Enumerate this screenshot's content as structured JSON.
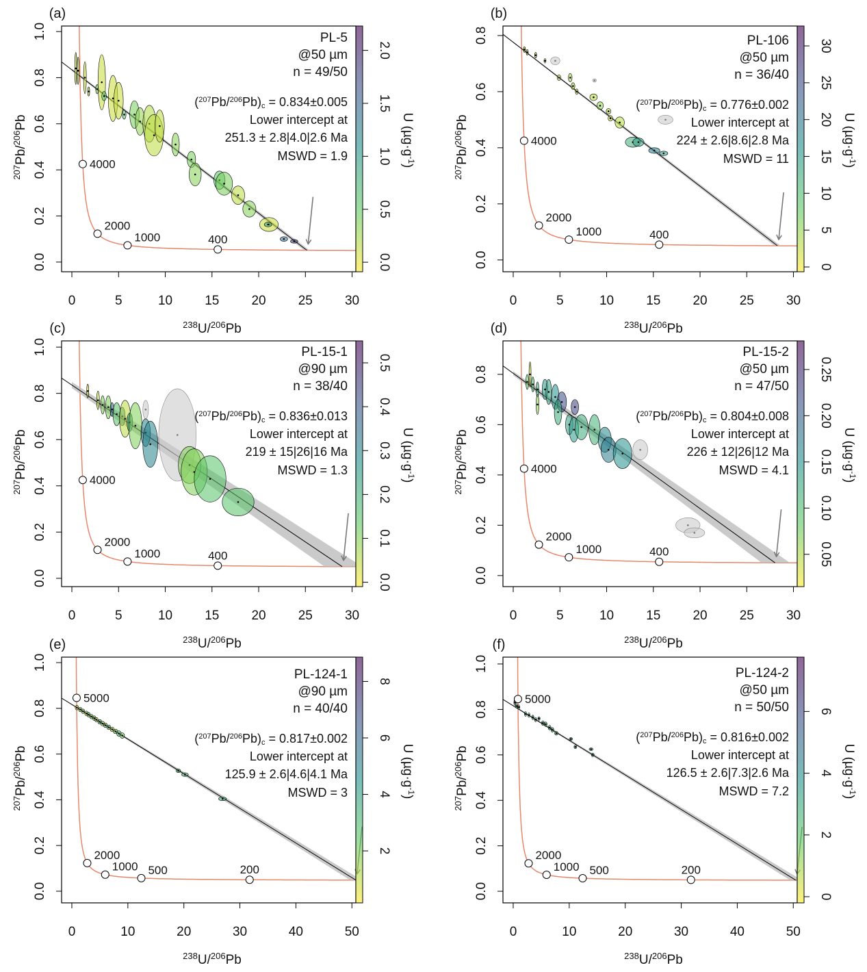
{
  "labels": {
    "x_axis": [
      "238",
      "U/",
      "206",
      "Pb"
    ],
    "y_axis": [
      "207",
      "Pb/",
      "206",
      "Pb"
    ],
    "colorbar": [
      "U (µg·g",
      "-1",
      ")"
    ],
    "pbc_format": [
      "(",
      "207",
      "Pb/",
      "206",
      "Pb)",
      "c",
      " = "
    ],
    "lower_intercept": "Lower intercept at"
  },
  "colors": {
    "concordia": "#E8866B",
    "discordia": "#000000",
    "envelope": "#BDBDBD",
    "rejected": "#CCCCCC",
    "arrow": "#777777",
    "colormap": "viridis (reversed: low = yellow, high = purple)"
  },
  "chart_data": [
    {
      "type": "scatter",
      "panel_label": "(a)",
      "sample": "PL-5",
      "spot": "@50 µm",
      "n": "n = 49/50",
      "pbc": 0.834,
      "pbc_text": "0.834±0.005",
      "pbc_err": 0.005,
      "age_ma": 251.3,
      "age_err": 2.8,
      "age_text": "251.3 ± 2.8|4.0|2.6 Ma",
      "mswd": "MSWD = 1.9",
      "xlim": [
        -1.1,
        30.4
      ],
      "ylim": [
        -0.042,
        1.024
      ],
      "x_ticks": [
        "0",
        "5",
        "10",
        "15",
        "20",
        "25",
        "30"
      ],
      "y_ticks": [
        "0.0",
        "0.2",
        "0.4",
        "0.6",
        "0.8",
        "1.0"
      ],
      "colorbar": {
        "range": [
          -0.09,
          2.23
        ],
        "ticks": [
          "0.0",
          "0.5",
          "1.0",
          "1.5",
          "2.0"
        ]
      },
      "concordia_ages": [
        4000,
        2000,
        1000,
        400
      ],
      "points": [
        [
          0.42,
          0.84,
          0.1,
          0.07,
          0.1
        ],
        [
          0.67,
          0.83,
          0.08,
          0.06,
          0.1
        ],
        [
          1.4,
          0.8,
          0.15,
          0.07,
          0.1
        ],
        [
          1.8,
          0.74,
          0.1,
          0.02,
          0.2
        ],
        [
          3.2,
          0.78,
          0.4,
          0.12,
          0.1
        ],
        [
          2.7,
          0.75,
          0.15,
          0.02,
          0.4
        ],
        [
          3.45,
          0.72,
          0.25,
          0.02,
          0.5
        ],
        [
          4.4,
          0.71,
          0.5,
          0.1,
          0.1
        ],
        [
          5.0,
          0.7,
          0.5,
          0.08,
          0.1
        ],
        [
          5.6,
          0.64,
          0.2,
          0.02,
          0.6
        ],
        [
          6.7,
          0.64,
          0.5,
          0.06,
          0.4
        ],
        [
          7.3,
          0.61,
          0.5,
          0.06,
          0.3
        ],
        [
          8.3,
          0.6,
          0.7,
          0.08,
          0.2
        ],
        [
          8.8,
          0.55,
          1.0,
          0.09,
          0.15
        ],
        [
          9.4,
          0.59,
          0.5,
          0.07,
          0.15
        ],
        [
          11.1,
          0.51,
          0.4,
          0.05,
          0.35
        ],
        [
          12.8,
          0.445,
          0.45,
          0.035,
          0.4
        ],
        [
          13.2,
          0.38,
          0.65,
          0.05,
          0.35
        ],
        [
          15.8,
          0.355,
          0.6,
          0.04,
          0.55
        ],
        [
          16.3,
          0.34,
          0.9,
          0.05,
          0.4
        ],
        [
          17.8,
          0.29,
          0.7,
          0.04,
          0.15
        ],
        [
          19.0,
          0.23,
          0.7,
          0.035,
          0.35
        ],
        [
          21.1,
          0.163,
          1.0,
          0.03,
          0.1
        ],
        [
          21.0,
          0.163,
          0.4,
          0.01,
          0.9
        ],
        [
          22.7,
          0.1,
          0.4,
          0.01,
          1.4
        ],
        [
          23.8,
          0.09,
          0.4,
          0.008,
          1.8
        ]
      ]
    },
    {
      "type": "scatter",
      "panel_label": "(b)",
      "sample": "PL-106",
      "spot": "@50 µm",
      "n": "n = 36/40",
      "pbc": 0.776,
      "pbc_text": "0.776±0.002",
      "pbc_err": 0.002,
      "age_ma": 224,
      "age_err": 2.6,
      "age_text": "224 ± 2.6|8.6|2.8 Ma",
      "mswd": "MSWD = 11",
      "xlim": [
        -1.1,
        30.4
      ],
      "ylim": [
        -0.042,
        0.834
      ],
      "x_ticks": [
        "0",
        "5",
        "10",
        "15",
        "20",
        "25",
        "30"
      ],
      "y_ticks": [
        "0.0",
        "0.2",
        "0.4",
        "0.6",
        "0.8"
      ],
      "colorbar": {
        "range": [
          -0.65,
          32.7
        ],
        "ticks": [
          "0",
          "5",
          "10",
          "15",
          "20",
          "25",
          "30"
        ]
      },
      "concordia_ages": [
        4000,
        2000,
        1000,
        400
      ],
      "points": [
        [
          1.2,
          0.75,
          0.1,
          0.01,
          2
        ],
        [
          1.5,
          0.74,
          0.1,
          0.01,
          3
        ],
        [
          2.4,
          0.73,
          0.1,
          0.01,
          2
        ],
        [
          3.4,
          0.71,
          0.1,
          0.008,
          3
        ],
        [
          4.5,
          0.71,
          0.5,
          0.014,
          null
        ],
        [
          4.9,
          0.65,
          0.2,
          0.01,
          3
        ],
        [
          6.1,
          0.65,
          0.2,
          0.015,
          4
        ],
        [
          6.4,
          0.62,
          0.2,
          0.012,
          3
        ],
        [
          6.8,
          0.6,
          0.15,
          0.01,
          2
        ],
        [
          8.7,
          0.64,
          0.2,
          0.006,
          null
        ],
        [
          8.6,
          0.58,
          0.4,
          0.012,
          3
        ],
        [
          9.3,
          0.55,
          0.35,
          0.014,
          5
        ],
        [
          10.2,
          0.53,
          0.25,
          0.01,
          3
        ],
        [
          10.4,
          0.505,
          0.25,
          0.01,
          2
        ],
        [
          11.4,
          0.49,
          0.5,
          0.02,
          3
        ],
        [
          16.3,
          0.5,
          0.8,
          0.016,
          null
        ],
        [
          12.8,
          0.42,
          0.8,
          0.018,
          12
        ],
        [
          13.4,
          0.42,
          0.6,
          0.015,
          14
        ],
        [
          15.1,
          0.39,
          0.6,
          0.01,
          18
        ],
        [
          16.1,
          0.38,
          0.45,
          0.008,
          15
        ]
      ]
    },
    {
      "type": "scatter",
      "panel_label": "(c)",
      "sample": "PL-15-1",
      "spot": "@90 µm",
      "n": "n = 38/40",
      "pbc": 0.836,
      "pbc_text": "0.836±0.013",
      "pbc_err": 0.013,
      "age_ma": 219,
      "age_err": 15,
      "age_text": "219 ± 15|26|16 Ma",
      "mswd": "MSWD = 1.3",
      "xlim": [
        -1.1,
        30.4
      ],
      "ylim": [
        -0.036,
        1.027
      ],
      "x_ticks": [
        "0",
        "5",
        "10",
        "15",
        "20",
        "25",
        "30"
      ],
      "y_ticks": [
        "0.0",
        "0.2",
        "0.4",
        "0.6",
        "0.8",
        "1.0"
      ],
      "colorbar": {
        "range": [
          -0.01,
          0.55
        ],
        "ticks": [
          "0.0",
          "0.1",
          "0.2",
          "0.3",
          "0.4",
          "0.5"
        ]
      },
      "concordia_ages": [
        4000,
        2000,
        1000,
        400
      ],
      "points": [
        [
          1.7,
          0.81,
          0.1,
          0.03,
          0.02
        ],
        [
          2.8,
          0.77,
          0.15,
          0.04,
          0.05
        ],
        [
          3.3,
          0.75,
          0.2,
          0.04,
          0.1
        ],
        [
          3.9,
          0.74,
          0.3,
          0.05,
          0.1
        ],
        [
          4.3,
          0.73,
          0.2,
          0.03,
          0.35
        ],
        [
          4.8,
          0.71,
          0.4,
          0.05,
          0.15
        ],
        [
          5.4,
          0.7,
          0.3,
          0.04,
          0.3
        ],
        [
          5.7,
          0.69,
          0.6,
          0.08,
          0.05
        ],
        [
          6.2,
          0.675,
          0.3,
          0.04,
          0.25
        ],
        [
          6.8,
          0.66,
          0.7,
          0.1,
          0.1
        ],
        [
          7.9,
          0.73,
          0.3,
          0.04,
          null
        ],
        [
          7.9,
          0.63,
          0.5,
          0.06,
          0.3
        ],
        [
          8.4,
          0.58,
          0.8,
          0.1,
          0.3
        ],
        [
          11.3,
          0.62,
          2.0,
          0.2,
          null
        ],
        [
          12.6,
          0.49,
          1.2,
          0.08,
          0.1
        ],
        [
          13.1,
          0.46,
          1.4,
          0.1,
          0.1
        ],
        [
          14.8,
          0.43,
          1.7,
          0.1,
          0.15
        ],
        [
          17.8,
          0.33,
          1.7,
          0.06,
          0.15
        ]
      ]
    },
    {
      "type": "scatter",
      "panel_label": "(d)",
      "sample": "PL-15-2",
      "spot": "@50 µm",
      "n": "n = 47/50",
      "pbc": 0.804,
      "pbc_text": "0.804±0.008",
      "pbc_err": 0.008,
      "age_ma": 226,
      "age_err": 12,
      "age_text": "226 ± 12|26|12 Ma",
      "mswd": "MSWD = 4.1",
      "xlim": [
        -1.1,
        30.4
      ],
      "ylim": [
        -0.044,
        0.933
      ],
      "x_ticks": [
        "0",
        "5",
        "10",
        "15",
        "20",
        "25",
        "30"
      ],
      "y_ticks": [
        "0.0",
        "0.2",
        "0.4",
        "0.6",
        "0.8"
      ],
      "colorbar": {
        "range": [
          0.015,
          0.281
        ],
        "ticks": [
          "0.05",
          "0.10",
          "0.15",
          "0.20",
          "0.25"
        ]
      },
      "concordia_ages": [
        4000,
        2000,
        1000,
        400
      ],
      "points": [
        [
          1.8,
          0.8,
          0.1,
          0.05,
          0.04
        ],
        [
          1.5,
          0.77,
          0.15,
          0.03,
          0.08
        ],
        [
          2.1,
          0.76,
          0.15,
          0.03,
          0.1
        ],
        [
          2.6,
          0.74,
          0.15,
          0.03,
          0.12
        ],
        [
          2.6,
          0.68,
          0.15,
          0.04,
          0.06
        ],
        [
          3.4,
          0.74,
          0.3,
          0.04,
          0.14
        ],
        [
          3.8,
          0.73,
          0.3,
          0.05,
          0.13
        ],
        [
          4.5,
          0.71,
          0.4,
          0.05,
          0.15
        ],
        [
          5.2,
          0.69,
          0.5,
          0.04,
          0.22
        ],
        [
          4.8,
          0.65,
          0.4,
          0.05,
          0.12
        ],
        [
          6.6,
          0.67,
          0.4,
          0.03,
          0.23
        ],
        [
          6.0,
          0.6,
          0.4,
          0.04,
          0.13
        ],
        [
          6.5,
          0.58,
          0.5,
          0.05,
          0.14
        ],
        [
          7.3,
          0.59,
          0.7,
          0.05,
          0.12
        ],
        [
          8.7,
          0.58,
          0.6,
          0.06,
          0.11
        ],
        [
          9.8,
          0.54,
          0.7,
          0.05,
          0.16
        ],
        [
          10.2,
          0.5,
          0.8,
          0.05,
          0.17
        ],
        [
          11.7,
          0.485,
          1.0,
          0.06,
          0.15
        ],
        [
          13.6,
          0.5,
          0.8,
          0.04,
          null
        ],
        [
          18.7,
          0.2,
          1.3,
          0.03,
          null
        ],
        [
          19.4,
          0.17,
          1.1,
          0.02,
          null
        ]
      ]
    },
    {
      "type": "scatter",
      "panel_label": "(e)",
      "sample": "PL-124-1",
      "spot": "@90 µm",
      "n": "n = 40/40",
      "pbc": 0.817,
      "pbc_text": "0.817±0.002",
      "pbc_err": 0.002,
      "age_ma": 125.9,
      "age_err": 2.6,
      "age_text": "125.9 ± 2.6|4.6|4.1 Ma",
      "mswd": "MSWD = 3",
      "xlim": [
        -1.83,
        50.7
      ],
      "ylim": [
        -0.051,
        1.024
      ],
      "x_ticks": [
        "0",
        "10",
        "20",
        "30",
        "40",
        "50"
      ],
      "y_ticks": [
        "0.0",
        "0.2",
        "0.4",
        "0.6",
        "0.8",
        "1.0"
      ],
      "colorbar": {
        "range": [
          0.16,
          8.86
        ],
        "ticks": [
          "2",
          "4",
          "6",
          "8"
        ]
      },
      "concordia_ages": [
        5000,
        2000,
        1000,
        500,
        200
      ],
      "points": [
        [
          0.9,
          0.803,
          0.3,
          0.01,
          1
        ],
        [
          1.5,
          0.795,
          0.3,
          0.01,
          1.5
        ],
        [
          2.0,
          0.787,
          0.3,
          0.01,
          2
        ],
        [
          2.6,
          0.778,
          0.3,
          0.01,
          1
        ],
        [
          3.0,
          0.772,
          0.3,
          0.01,
          2.5
        ],
        [
          3.5,
          0.764,
          0.3,
          0.01,
          1.5
        ],
        [
          4.0,
          0.757,
          0.3,
          0.01,
          2
        ],
        [
          4.4,
          0.75,
          0.3,
          0.01,
          1
        ],
        [
          5.0,
          0.741,
          0.35,
          0.01,
          3
        ],
        [
          5.5,
          0.733,
          0.35,
          0.01,
          1.5
        ],
        [
          6.0,
          0.726,
          0.35,
          0.01,
          2
        ],
        [
          6.6,
          0.717,
          0.35,
          0.01,
          2.5
        ],
        [
          7.2,
          0.708,
          0.35,
          0.01,
          1
        ],
        [
          7.8,
          0.699,
          0.4,
          0.01,
          2
        ],
        [
          8.4,
          0.69,
          0.4,
          0.012,
          3
        ],
        [
          9.0,
          0.681,
          0.4,
          0.012,
          2
        ],
        [
          19.0,
          0.527,
          0.4,
          0.008,
          3
        ],
        [
          20.2,
          0.51,
          0.6,
          0.008,
          3
        ],
        [
          26.9,
          0.404,
          0.7,
          0.008,
          3.5
        ]
      ]
    },
    {
      "type": "scatter",
      "panel_label": "(f)",
      "sample": "PL-124-2",
      "spot": "@50 µm",
      "n": "n = 50/50",
      "pbc": 0.816,
      "pbc_text": "0.816±0.002",
      "pbc_err": 0.002,
      "age_ma": 126.5,
      "age_err": 2.6,
      "age_text": "126.5 ± 2.6|7.3|2.6 Ma",
      "mswd": "MSWD = 7.2",
      "xlim": [
        -1.83,
        50.7
      ],
      "ylim": [
        -0.051,
        1.03
      ],
      "x_ticks": [
        "0",
        "10",
        "20",
        "30",
        "40",
        "50"
      ],
      "y_ticks": [
        "0.0",
        "0.2",
        "0.4",
        "0.6",
        "0.8",
        "1.0"
      ],
      "colorbar": {
        "range": [
          -0.2,
          7.76
        ],
        "ticks": [
          "0",
          "2",
          "4",
          "6"
        ]
      },
      "concordia_ages": [
        5000,
        2000,
        1000,
        500,
        200
      ],
      "points": [
        [
          0.3,
          0.83,
          0.15,
          0.012,
          3
        ],
        [
          0.6,
          0.815,
          0.15,
          0.01,
          2
        ],
        [
          1.0,
          0.81,
          0.15,
          0.01,
          3
        ],
        [
          2.2,
          0.78,
          0.2,
          0.01,
          3
        ],
        [
          2.8,
          0.775,
          0.2,
          0.01,
          2
        ],
        [
          3.5,
          0.765,
          0.2,
          0.01,
          3
        ],
        [
          4.0,
          0.755,
          0.2,
          0.01,
          2
        ],
        [
          4.6,
          0.76,
          0.2,
          0.008,
          3
        ],
        [
          5.3,
          0.74,
          0.25,
          0.01,
          3
        ],
        [
          5.8,
          0.735,
          0.25,
          0.01,
          2
        ],
        [
          6.5,
          0.72,
          0.25,
          0.01,
          3
        ],
        [
          7.0,
          0.71,
          0.25,
          0.01,
          3
        ],
        [
          7.7,
          0.695,
          0.3,
          0.008,
          2
        ],
        [
          10.3,
          0.67,
          0.3,
          0.006,
          3
        ],
        [
          11.1,
          0.635,
          0.25,
          0.008,
          3
        ],
        [
          13.9,
          0.625,
          0.35,
          0.006,
          4
        ],
        [
          14.2,
          0.6,
          0.25,
          0.008,
          3
        ]
      ]
    }
  ]
}
